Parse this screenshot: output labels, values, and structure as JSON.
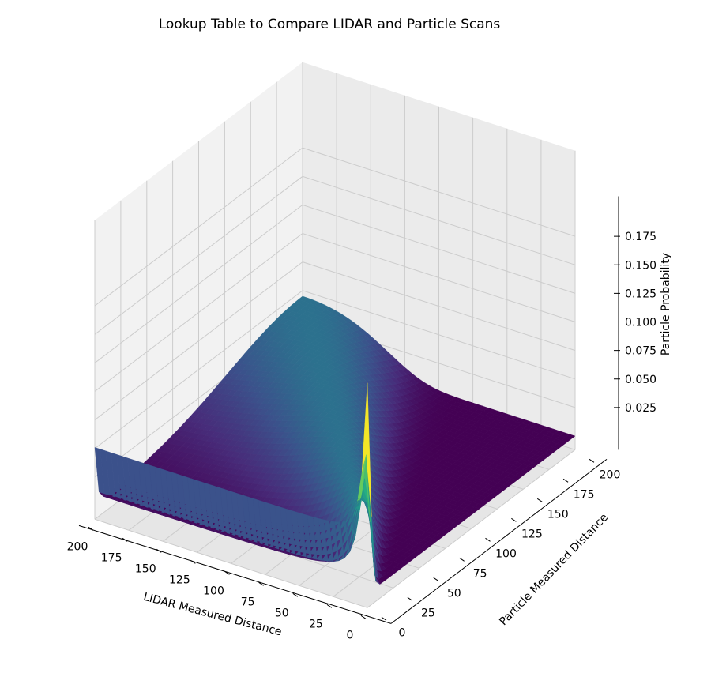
{
  "chart_data": {
    "type": "surface3d",
    "title": "Lookup Table to Compare LIDAR and Particle Scans",
    "xlabel": "LIDAR Measured Distance",
    "ylabel": "Particle Measured Distance",
    "zlabel": "Particle Probability",
    "x_ticks": [
      "0",
      "25",
      "50",
      "75",
      "100",
      "125",
      "150",
      "175",
      "200"
    ],
    "y_ticks": [
      "0",
      "25",
      "50",
      "75",
      "100",
      "125",
      "150",
      "175",
      "200"
    ],
    "z_ticks": [
      "0.025",
      "0.050",
      "0.075",
      "0.100",
      "0.125",
      "0.150",
      "0.175"
    ],
    "xlim": [
      0,
      200
    ],
    "ylim": [
      0,
      200
    ],
    "zlim": [
      0,
      0.19
    ],
    "colormap": "viridis",
    "grid": true,
    "surface_profile": {
      "description_x_values": "LIDAR measured distance",
      "peak_along_diagonal_y_equals_x": [
        {
          "x": 0,
          "peak_probability": 0.135
        },
        {
          "x": 2,
          "peak_probability": 0.19
        },
        {
          "x": 25,
          "peak_probability": 0.1
        },
        {
          "x": 50,
          "peak_probability": 0.075
        },
        {
          "x": 100,
          "peak_probability": 0.055
        },
        {
          "x": 150,
          "peak_probability": 0.05
        },
        {
          "x": 200,
          "peak_probability": 0.048
        }
      ],
      "wall_at_particle_distance_0": 0.05,
      "baseline_probability": 0.0
    }
  }
}
